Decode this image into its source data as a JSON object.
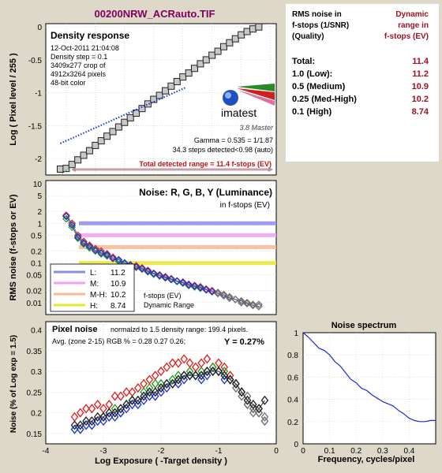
{
  "title": "00200NRW_ACRauto.TIF",
  "density_panel": {
    "heading": "Density response",
    "info": [
      "12-Oct-2011 21:04:08",
      "Density step = 0.1",
      "3409x277 crop of",
      "4912x3264 pixels",
      "48-bit color"
    ],
    "logo_text": "imatest",
    "logo_sub": "3.8  Master",
    "gamma": "Gamma = 0.535 = 1/1.87",
    "steps": "34.3 steps detected<0.98 (auto)",
    "total_range": "Total detected range = 11.4 f-stops (EV)",
    "ylabel": "Log ( Pixel level / 255 )",
    "yticks": [
      "0",
      "-0.5",
      "-1",
      "-1.5",
      "-2"
    ]
  },
  "noise_panel": {
    "heading": "Noise: R, G, B, Y (Luminance)",
    "subheading": "in f-stops (EV)",
    "ylabel": "RMS noise (f-stops or EV)",
    "yticks": [
      "10",
      "5",
      "2",
      "1",
      "0.5",
      "0.2",
      "0.1",
      "0.05",
      "0.02",
      "0.01"
    ],
    "legend": [
      {
        "label": "L:",
        "value": "11.2",
        "color": "#8c8cf0"
      },
      {
        "label": "M:",
        "value": "10.9",
        "color": "#f0a0f0"
      },
      {
        "label": "M-H:",
        "value": "10.2",
        "color": "#f8b890"
      },
      {
        "label": "H:",
        "value": "8.74",
        "color": "#e8e830"
      }
    ],
    "footer1": "f-stops (EV)",
    "footer2": "Dynamic Range"
  },
  "pixel_panel": {
    "heading": "Pixel noise",
    "norm": "normalzd to 1.5 density range: 199.4 pixels.",
    "avg": "Avg. (zone 2-15) RGB % = 0.28  0.27  0.26;",
    "y_value": "Y = 0.27%",
    "ylabel": "Noise (% of Log exp = 1.5)",
    "xlabel": "Log Exposure ( -Target density )",
    "yticks": [
      "0.4",
      "0.35",
      "0.3",
      "0.25",
      "0.2",
      "0.15"
    ],
    "xticks": [
      "-4",
      "-3",
      "-2",
      "-1",
      "0"
    ]
  },
  "dr_table": {
    "col1": [
      "RMS noise in",
      "f-stops (1/SNR)",
      "(Quality)"
    ],
    "col2": [
      "Dynamic",
      "range in",
      "f-stops (EV)"
    ],
    "rows": [
      {
        "label": "Total:",
        "value": "11.4"
      },
      {
        "label": "1.0  (Low):",
        "value": "11.2"
      },
      {
        "label": "0.5  (Medium)",
        "value": "10.9"
      },
      {
        "label": "0.25 (Med-High)",
        "value": "10.2"
      },
      {
        "label": "0.1  (High)",
        "value": "8.74"
      }
    ]
  },
  "spectrum_panel": {
    "heading": "Noise spectrum",
    "xlabel": "Frequency, cycles/pixel",
    "yticks": [
      "1",
      "0.8",
      "0.6",
      "0.4",
      "0.2",
      "0"
    ],
    "xticks": [
      "0",
      "0.1",
      "0.2",
      "0.3",
      "0.4"
    ]
  },
  "colors": {
    "red": "#e02020",
    "green": "#20a020",
    "blue": "#2030e0",
    "gray": "#707070",
    "background": "#ddd8c8",
    "title_color": "#800060"
  },
  "chart_data": [
    {
      "type": "scatter",
      "name": "Density response",
      "x": [
        -3.6,
        -3.5,
        -3.4,
        -3.3,
        -3.2,
        -3.1,
        -3.0,
        -2.9,
        -2.8,
        -2.7,
        -2.6,
        -2.5,
        -2.4,
        -2.3,
        -2.2,
        -2.1,
        -2.0,
        -1.9,
        -1.8,
        -1.7,
        -1.6,
        -1.5,
        -1.4,
        -1.3,
        -1.2,
        -1.1,
        -1.0,
        -0.9,
        -0.8,
        -0.7,
        -0.6,
        -0.5,
        -0.4,
        -0.3,
        -0.2
      ],
      "y": [
        -2.16,
        -2.15,
        -2.09,
        -2.02,
        -1.95,
        -1.88,
        -1.8,
        -1.73,
        -1.66,
        -1.59,
        -1.52,
        -1.45,
        -1.38,
        -1.31,
        -1.24,
        -1.17,
        -1.1,
        -1.04,
        -0.97,
        -0.9,
        -0.83,
        -0.76,
        -0.7,
        -0.63,
        -0.56,
        -0.5,
        -0.43,
        -0.37,
        -0.3,
        -0.24,
        -0.18,
        -0.12,
        -0.07,
        -0.03,
        0.0
      ],
      "ylim": [
        -2.25,
        0.05
      ]
    },
    {
      "type": "line",
      "name": "Noise spectrum",
      "x": [
        0,
        0.02,
        0.04,
        0.06,
        0.08,
        0.1,
        0.12,
        0.14,
        0.16,
        0.18,
        0.2,
        0.22,
        0.24,
        0.26,
        0.28,
        0.3,
        0.32,
        0.34,
        0.36,
        0.38,
        0.4,
        0.42,
        0.44,
        0.46,
        0.48,
        0.5
      ],
      "y": [
        1.0,
        0.96,
        0.91,
        0.86,
        0.84,
        0.8,
        0.74,
        0.7,
        0.64,
        0.58,
        0.55,
        0.5,
        0.48,
        0.44,
        0.41,
        0.38,
        0.36,
        0.34,
        0.3,
        0.27,
        0.23,
        0.21,
        0.2,
        0.2,
        0.21,
        0.21
      ],
      "ylim": [
        0,
        1
      ],
      "xlim": [
        0,
        0.5
      ]
    },
    {
      "type": "scatter",
      "name": "Pixel noise",
      "x": [
        -3.5,
        -3.4,
        -3.3,
        -3.2,
        -3.1,
        -3.0,
        -2.9,
        -2.8,
        -2.7,
        -2.6,
        -2.5,
        -2.4,
        -2.3,
        -2.2,
        -2.1,
        -2.0,
        -1.9,
        -1.8,
        -1.7,
        -1.6,
        -1.5,
        -1.4,
        -1.3,
        -1.2,
        -1.1,
        -1.0,
        -0.9,
        -0.8,
        -0.7,
        -0.6,
        -0.5,
        -0.4,
        -0.3,
        -0.2
      ],
      "series": [
        {
          "name": "R",
          "values": [
            0.19,
            0.2,
            0.21,
            0.21,
            0.22,
            0.21,
            0.22,
            0.24,
            0.24,
            0.25,
            0.25,
            0.26,
            0.27,
            0.28,
            0.29,
            0.3,
            0.31,
            0.32,
            0.32,
            0.33,
            0.32,
            0.31,
            0.32,
            0.33,
            0.31,
            0.32,
            0.31,
            0.29,
            0.27,
            0.25,
            0.22,
            0.2,
            0.21,
            0.19
          ]
        },
        {
          "name": "G",
          "values": [
            0.16,
            0.16,
            0.17,
            0.17,
            0.18,
            0.19,
            0.19,
            0.21,
            0.2,
            0.22,
            0.23,
            0.23,
            0.25,
            0.26,
            0.27,
            0.27,
            0.27,
            0.28,
            0.29,
            0.29,
            0.3,
            0.29,
            0.3,
            0.3,
            0.31,
            0.3,
            0.3,
            0.28,
            0.26,
            0.24,
            0.22,
            0.21,
            0.2,
            0.18
          ]
        },
        {
          "name": "B",
          "values": [
            0.16,
            0.16,
            0.17,
            0.17,
            0.18,
            0.18,
            0.19,
            0.19,
            0.2,
            0.21,
            0.22,
            0.22,
            0.23,
            0.24,
            0.24,
            0.25,
            0.26,
            0.27,
            0.27,
            0.28,
            0.29,
            0.29,
            0.28,
            0.29,
            0.3,
            0.3,
            0.28,
            0.28,
            0.27,
            0.25,
            0.24,
            0.21,
            0.2,
            0.18
          ]
        },
        {
          "name": "Y",
          "values": [
            0.17,
            0.17,
            0.18,
            0.18,
            0.19,
            0.19,
            0.2,
            0.2,
            0.21,
            0.22,
            0.23,
            0.23,
            0.24,
            0.25,
            0.25,
            0.26,
            0.27,
            0.27,
            0.28,
            0.29,
            0.29,
            0.29,
            0.29,
            0.3,
            0.3,
            0.3,
            0.29,
            0.28,
            0.27,
            0.25,
            0.23,
            0.22,
            0.21,
            0.23
          ]
        }
      ],
      "ylim": [
        0.125,
        0.42
      ],
      "xlim": [
        -4,
        0
      ]
    },
    {
      "type": "scatter",
      "name": "Noise RGBY",
      "x": [
        -3.5,
        -3.4,
        -3.3,
        -3.2,
        -3.1,
        -3.0,
        -2.9,
        -2.8,
        -2.7,
        -2.6,
        -2.5,
        -2.4,
        -2.3,
        -2.2,
        -2.1,
        -2.0,
        -1.9,
        -1.8,
        -1.7,
        -1.6,
        -1.5,
        -1.4,
        -1.3,
        -1.2,
        -1.1,
        -1.0,
        -0.9,
        -0.8,
        -0.7,
        -0.6,
        -0.5,
        -0.4,
        -0.3,
        -0.2
      ],
      "series": [
        {
          "name": "R",
          "values": [
            1.6,
            1.0,
            0.5,
            0.35,
            0.28,
            0.23,
            0.2,
            0.17,
            0.14,
            0.12,
            0.1,
            0.09,
            0.085,
            0.075,
            0.065,
            0.055,
            0.05,
            0.045,
            0.04,
            0.035,
            0.033,
            0.029,
            0.027,
            0.025,
            0.022,
            0.02,
            0.018,
            0.016,
            0.014,
            0.012,
            0.011,
            0.01,
            0.009,
            0.009
          ]
        },
        {
          "name": "G",
          "values": [
            1.3,
            0.8,
            0.42,
            0.3,
            0.24,
            0.2,
            0.17,
            0.15,
            0.13,
            0.11,
            0.095,
            0.085,
            0.078,
            0.07,
            0.06,
            0.052,
            0.047,
            0.042,
            0.038,
            0.034,
            0.031,
            0.027,
            0.025,
            0.023,
            0.021,
            0.019,
            0.017,
            0.015,
            0.013,
            0.012,
            0.01,
            0.0095,
            0.0085,
            0.008
          ]
        },
        {
          "name": "B",
          "values": [
            1.5,
            0.9,
            0.45,
            0.32,
            0.26,
            0.21,
            0.18,
            0.16,
            0.13,
            0.12,
            0.1,
            0.088,
            0.08,
            0.072,
            0.062,
            0.054,
            0.048,
            0.043,
            0.039,
            0.035,
            0.032,
            0.028,
            0.026,
            0.024,
            0.021,
            0.019,
            0.017,
            0.015,
            0.013,
            0.012,
            0.011,
            0.0095,
            0.0085,
            0.008
          ]
        }
      ],
      "ylim": [
        0.005,
        10
      ]
    }
  ]
}
